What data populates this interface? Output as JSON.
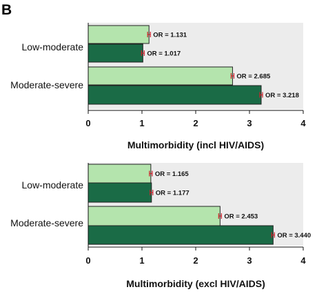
{
  "panel_label": "B",
  "colors": {
    "light_bar": "#b4e4ad",
    "dark_bar": "#1a6b46",
    "bar_stroke": "#222222",
    "plot_bg": "#ececec",
    "error_bar": "#cc1f2a"
  },
  "chart_data": [
    {
      "type": "bar",
      "orientation": "horizontal",
      "xlabel": "Multimorbidity (incl HIV/AIDS)",
      "xlim": [
        0,
        4
      ],
      "xticks": [
        "0",
        "1",
        "2",
        "3",
        "4"
      ],
      "categories": [
        "Low-moderate",
        "Moderate-severe"
      ],
      "series": [
        {
          "shade": "light",
          "values": [
            1.131,
            2.685
          ],
          "labels": [
            "OR = 1.131",
            "OR = 2.685"
          ]
        },
        {
          "shade": "dark",
          "values": [
            1.017,
            3.218
          ],
          "labels": [
            "OR = 1.017",
            "OR = 3.218"
          ]
        }
      ],
      "grid": false
    },
    {
      "type": "bar",
      "orientation": "horizontal",
      "xlabel": "Multimorbidity (excl HIV/AIDS)",
      "xlim": [
        0,
        4
      ],
      "xticks": [
        "0",
        "1",
        "2",
        "3",
        "4"
      ],
      "categories": [
        "Low-moderate",
        "Moderate-severe"
      ],
      "series": [
        {
          "shade": "light",
          "values": [
            1.165,
            2.453
          ],
          "labels": [
            "OR = 1.165",
            "OR = 2.453"
          ]
        },
        {
          "shade": "dark",
          "values": [
            1.177,
            3.44
          ],
          "labels": [
            "OR = 1.177",
            "OR = 3.440"
          ]
        }
      ],
      "grid": false
    }
  ]
}
